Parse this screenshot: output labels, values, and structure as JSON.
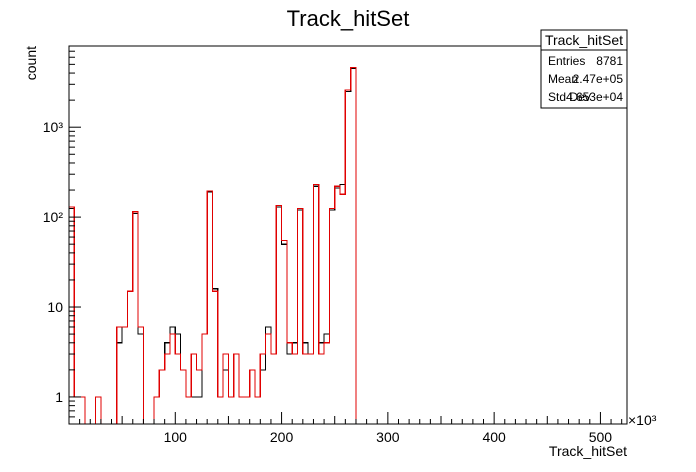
{
  "chart_data": {
    "type": "histogram",
    "title": "Track_hitSet",
    "xlabel": "Track_hitSet",
    "ylabel": "count",
    "x_exponent_label": "×10³",
    "xlim": [
      0,
      525
    ],
    "ylim": [
      0.5,
      8000
    ],
    "log_y": true,
    "grid": false,
    "x_ticks": [
      100,
      200,
      300,
      400,
      500
    ],
    "y_ticks": [
      {
        "value": 1,
        "label": "1"
      },
      {
        "value": 10,
        "label": "10"
      },
      {
        "value": 100,
        "label": "10²"
      },
      {
        "value": 1000,
        "label": "10³"
      }
    ],
    "stats_box": {
      "title": "Track_hitSet",
      "rows": [
        {
          "label": "Entries",
          "value": "8781"
        },
        {
          "label": "Mean",
          "value": "2.47e+05"
        },
        {
          "label": "Std Dev",
          "value": "4.653e+04"
        }
      ]
    },
    "series": [
      {
        "color": "#000000",
        "bins": [
          [
            0,
            5,
            125
          ],
          [
            5,
            10,
            1
          ],
          [
            10,
            15,
            1
          ],
          [
            25,
            30,
            1
          ],
          [
            45,
            50,
            4
          ],
          [
            50,
            55,
            6
          ],
          [
            55,
            60,
            15
          ],
          [
            60,
            65,
            110
          ],
          [
            65,
            70,
            5
          ],
          [
            80,
            85,
            1
          ],
          [
            85,
            90,
            2
          ],
          [
            90,
            95,
            4
          ],
          [
            95,
            100,
            6
          ],
          [
            100,
            105,
            5
          ],
          [
            105,
            110,
            2
          ],
          [
            110,
            115,
            1
          ],
          [
            115,
            120,
            1
          ],
          [
            120,
            125,
            1
          ],
          [
            125,
            130,
            5
          ],
          [
            130,
            135,
            190
          ],
          [
            135,
            140,
            16
          ],
          [
            140,
            145,
            1
          ],
          [
            145,
            150,
            2
          ],
          [
            150,
            155,
            1
          ],
          [
            155,
            160,
            3
          ],
          [
            160,
            165,
            1
          ],
          [
            165,
            170,
            1
          ],
          [
            170,
            175,
            2
          ],
          [
            175,
            180,
            1
          ],
          [
            180,
            185,
            2
          ],
          [
            185,
            190,
            6
          ],
          [
            190,
            195,
            3
          ],
          [
            195,
            200,
            130
          ],
          [
            200,
            205,
            50
          ],
          [
            205,
            210,
            3
          ],
          [
            210,
            215,
            4
          ],
          [
            215,
            220,
            120
          ],
          [
            220,
            225,
            4
          ],
          [
            225,
            230,
            3
          ],
          [
            230,
            235,
            220
          ],
          [
            235,
            240,
            4
          ],
          [
            240,
            245,
            5
          ],
          [
            245,
            250,
            120
          ],
          [
            250,
            255,
            210
          ],
          [
            255,
            260,
            230
          ],
          [
            260,
            265,
            2500
          ],
          [
            265,
            270,
            4500
          ]
        ]
      },
      {
        "color": "#e00000",
        "bins": [
          [
            0,
            5,
            130
          ],
          [
            5,
            10,
            1
          ],
          [
            10,
            15,
            1
          ],
          [
            25,
            30,
            1
          ],
          [
            45,
            50,
            6
          ],
          [
            50,
            55,
            6
          ],
          [
            55,
            60,
            15
          ],
          [
            60,
            65,
            115
          ],
          [
            65,
            70,
            6
          ],
          [
            80,
            85,
            1
          ],
          [
            85,
            90,
            2
          ],
          [
            90,
            95,
            3
          ],
          [
            95,
            100,
            5
          ],
          [
            100,
            105,
            3
          ],
          [
            105,
            110,
            2
          ],
          [
            110,
            115,
            1
          ],
          [
            115,
            120,
            3
          ],
          [
            120,
            125,
            2
          ],
          [
            125,
            130,
            5
          ],
          [
            130,
            135,
            195
          ],
          [
            135,
            140,
            15
          ],
          [
            140,
            145,
            1
          ],
          [
            145,
            150,
            3
          ],
          [
            150,
            155,
            1
          ],
          [
            155,
            160,
            3
          ],
          [
            160,
            165,
            1
          ],
          [
            165,
            170,
            1
          ],
          [
            170,
            175,
            2
          ],
          [
            175,
            180,
            1
          ],
          [
            180,
            185,
            3
          ],
          [
            185,
            190,
            5
          ],
          [
            190,
            195,
            3
          ],
          [
            195,
            200,
            135
          ],
          [
            200,
            205,
            55
          ],
          [
            205,
            210,
            4
          ],
          [
            210,
            215,
            3
          ],
          [
            215,
            220,
            125
          ],
          [
            220,
            225,
            3
          ],
          [
            225,
            230,
            3
          ],
          [
            230,
            235,
            230
          ],
          [
            235,
            240,
            3
          ],
          [
            240,
            245,
            4
          ],
          [
            245,
            250,
            125
          ],
          [
            250,
            255,
            220
          ],
          [
            255,
            260,
            180
          ],
          [
            260,
            265,
            2600
          ],
          [
            265,
            270,
            4600
          ]
        ]
      }
    ]
  }
}
